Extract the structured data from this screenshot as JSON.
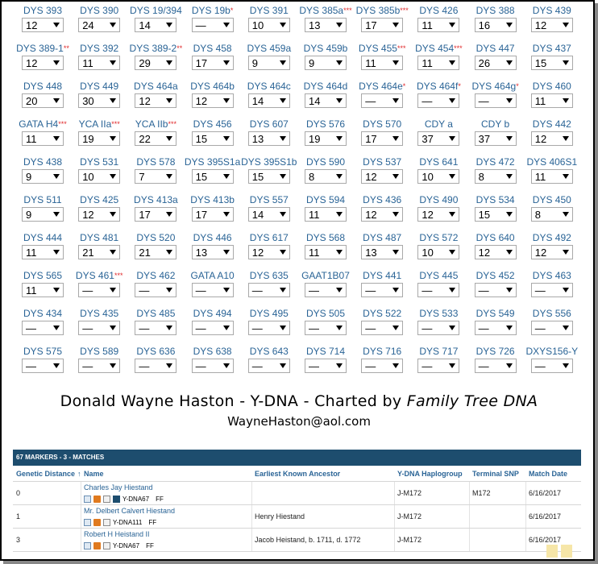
{
  "markers": [
    [
      {
        "label": "DYS 393",
        "req": "",
        "value": "12"
      },
      {
        "label": "DYS 390",
        "req": "",
        "value": "24"
      },
      {
        "label": "DYS 19/394",
        "req": "",
        "value": "14"
      },
      {
        "label": "DYS 19b",
        "req": "*",
        "value": "—"
      },
      {
        "label": "DYS 391",
        "req": "",
        "value": "10"
      },
      {
        "label": "DYS 385a",
        "req": "***",
        "value": "13"
      },
      {
        "label": "DYS 385b",
        "req": "***",
        "value": "17"
      },
      {
        "label": "DYS 426",
        "req": "",
        "value": "11"
      },
      {
        "label": "DYS 388",
        "req": "",
        "value": "16"
      },
      {
        "label": "DYS 439",
        "req": "",
        "value": "12"
      }
    ],
    [
      {
        "label": "DYS 389-1",
        "req": "**",
        "value": "12"
      },
      {
        "label": "DYS 392",
        "req": "",
        "value": "11"
      },
      {
        "label": "DYS 389-2",
        "req": "**",
        "value": "29"
      },
      {
        "label": "DYS 458",
        "req": "",
        "value": "17"
      },
      {
        "label": "DYS 459a",
        "req": "",
        "value": "9"
      },
      {
        "label": "DYS 459b",
        "req": "",
        "value": "9"
      },
      {
        "label": "DYS 455",
        "req": "***",
        "value": "11"
      },
      {
        "label": "DYS 454",
        "req": "***",
        "value": "11"
      },
      {
        "label": "DYS 447",
        "req": "",
        "value": "26"
      },
      {
        "label": "DYS 437",
        "req": "",
        "value": "15"
      }
    ],
    [
      {
        "label": "DYS 448",
        "req": "",
        "value": "20"
      },
      {
        "label": "DYS 449",
        "req": "",
        "value": "30"
      },
      {
        "label": "DYS 464a",
        "req": "",
        "value": "12"
      },
      {
        "label": "DYS 464b",
        "req": "",
        "value": "12"
      },
      {
        "label": "DYS 464c",
        "req": "",
        "value": "14"
      },
      {
        "label": "DYS 464d",
        "req": "",
        "value": "14"
      },
      {
        "label": "DYS 464e",
        "req": "*",
        "value": "—"
      },
      {
        "label": "DYS 464f",
        "req": "*",
        "value": "—"
      },
      {
        "label": "DYS 464g",
        "req": "*",
        "value": "—"
      },
      {
        "label": "DYS 460",
        "req": "",
        "value": "11"
      }
    ],
    [
      {
        "label": "GATA H4",
        "req": "***",
        "value": "11"
      },
      {
        "label": "YCA IIa",
        "req": "***",
        "value": "19"
      },
      {
        "label": "YCA IIb",
        "req": "***",
        "value": "22"
      },
      {
        "label": "DYS 456",
        "req": "",
        "value": "15"
      },
      {
        "label": "DYS 607",
        "req": "",
        "value": "13"
      },
      {
        "label": "DYS 576",
        "req": "",
        "value": "19"
      },
      {
        "label": "DYS 570",
        "req": "",
        "value": "17"
      },
      {
        "label": "CDY a",
        "req": "",
        "value": "37"
      },
      {
        "label": "CDY b",
        "req": "",
        "value": "37"
      },
      {
        "label": "DYS 442",
        "req": "",
        "value": "12"
      }
    ],
    [
      {
        "label": "DYS 438",
        "req": "",
        "value": "9"
      },
      {
        "label": "DYS 531",
        "req": "",
        "value": "10"
      },
      {
        "label": "DYS 578",
        "req": "",
        "value": "7"
      },
      {
        "label": "DYS 395S1a",
        "req": "",
        "value": "15"
      },
      {
        "label": "DYS 395S1b",
        "req": "",
        "value": "15"
      },
      {
        "label": "DYS 590",
        "req": "",
        "value": "8"
      },
      {
        "label": "DYS 537",
        "req": "",
        "value": "12"
      },
      {
        "label": "DYS 641",
        "req": "",
        "value": "10"
      },
      {
        "label": "DYS 472",
        "req": "",
        "value": "8"
      },
      {
        "label": "DYS 406S1",
        "req": "",
        "value": "11"
      }
    ],
    [
      {
        "label": "DYS 511",
        "req": "",
        "value": "9"
      },
      {
        "label": "DYS 425",
        "req": "",
        "value": "12"
      },
      {
        "label": "DYS 413a",
        "req": "",
        "value": "17"
      },
      {
        "label": "DYS 413b",
        "req": "",
        "value": "17"
      },
      {
        "label": "DYS 557",
        "req": "",
        "value": "14"
      },
      {
        "label": "DYS 594",
        "req": "",
        "value": "11"
      },
      {
        "label": "DYS 436",
        "req": "",
        "value": "12"
      },
      {
        "label": "DYS 490",
        "req": "",
        "value": "12"
      },
      {
        "label": "DYS 534",
        "req": "",
        "value": "15"
      },
      {
        "label": "DYS 450",
        "req": "",
        "value": "8"
      }
    ],
    [
      {
        "label": "DYS 444",
        "req": "",
        "value": "11"
      },
      {
        "label": "DYS 481",
        "req": "",
        "value": "21"
      },
      {
        "label": "DYS 520",
        "req": "",
        "value": "21"
      },
      {
        "label": "DYS 446",
        "req": "",
        "value": "13"
      },
      {
        "label": "DYS 617",
        "req": "",
        "value": "12"
      },
      {
        "label": "DYS 568",
        "req": "",
        "value": "11"
      },
      {
        "label": "DYS 487",
        "req": "",
        "value": "13"
      },
      {
        "label": "DYS 572",
        "req": "",
        "value": "10"
      },
      {
        "label": "DYS 640",
        "req": "",
        "value": "12"
      },
      {
        "label": "DYS 492",
        "req": "",
        "value": "12"
      }
    ],
    [
      {
        "label": "DYS 565",
        "req": "",
        "value": "11"
      },
      {
        "label": "DYS 461",
        "req": "***",
        "value": "—"
      },
      {
        "label": "DYS 462",
        "req": "",
        "value": "—"
      },
      {
        "label": "GATA A10",
        "req": "",
        "value": "—"
      },
      {
        "label": "DYS 635",
        "req": "",
        "value": "—"
      },
      {
        "label": "GAAT1B07",
        "req": "",
        "value": "—"
      },
      {
        "label": "DYS 441",
        "req": "",
        "value": "—"
      },
      {
        "label": "DYS 445",
        "req": "",
        "value": "—"
      },
      {
        "label": "DYS 452",
        "req": "",
        "value": "—"
      },
      {
        "label": "DYS 463",
        "req": "",
        "value": "—"
      }
    ],
    [
      {
        "label": "DYS 434",
        "req": "",
        "value": "—"
      },
      {
        "label": "DYS 435",
        "req": "",
        "value": "—"
      },
      {
        "label": "DYS 485",
        "req": "",
        "value": "—"
      },
      {
        "label": "DYS 494",
        "req": "",
        "value": "—"
      },
      {
        "label": "DYS 495",
        "req": "",
        "value": "—"
      },
      {
        "label": "DYS 505",
        "req": "",
        "value": "—"
      },
      {
        "label": "DYS 522",
        "req": "",
        "value": "—"
      },
      {
        "label": "DYS 533",
        "req": "",
        "value": "—"
      },
      {
        "label": "DYS 549",
        "req": "",
        "value": "—"
      },
      {
        "label": "DYS 556",
        "req": "",
        "value": "—"
      }
    ],
    [
      {
        "label": "DYS 575",
        "req": "",
        "value": "—"
      },
      {
        "label": "DYS 589",
        "req": "",
        "value": "—"
      },
      {
        "label": "DYS 636",
        "req": "",
        "value": "—"
      },
      {
        "label": "DYS 638",
        "req": "",
        "value": "—"
      },
      {
        "label": "DYS 643",
        "req": "",
        "value": "—"
      },
      {
        "label": "DYS 714",
        "req": "",
        "value": "—"
      },
      {
        "label": "DYS 716",
        "req": "",
        "value": "—"
      },
      {
        "label": "DYS 717",
        "req": "",
        "value": "—"
      },
      {
        "label": "DYS 726",
        "req": "",
        "value": "—"
      },
      {
        "label": "DXYS156-Y",
        "req": "",
        "value": "—"
      }
    ]
  ],
  "title": {
    "prefix": "Donald Wayne Haston - Y-DNA - Charted by ",
    "italic": "Family Tree DNA"
  },
  "email": "WayneHaston@aol.com",
  "matches": {
    "header": "67 MARKERS - 3 - MATCHES",
    "columns": {
      "distance": "Genetic Distance",
      "sort_arrow": "↑",
      "name": "Name",
      "ancestor": "Earliest Known Ancestor",
      "haplogroup": "Y-DNA Haplogroup",
      "snp": "Terminal SNP",
      "date": "Match Date"
    },
    "rows": [
      {
        "distance": "0",
        "name": "Charles Jay Hiestand",
        "test": "Y-DNA67",
        "ff": "FF",
        "ancestor": "",
        "haplogroup": "J-M172",
        "snp": "M172",
        "date": "6/16/2017"
      },
      {
        "distance": "1",
        "name": "Mr. Delbert Calvert Hiestand",
        "test": "Y-DNA111",
        "ff": "FF",
        "ancestor": "Henry Hiestand",
        "haplogroup": "J-M172",
        "snp": "",
        "date": "6/16/2017"
      },
      {
        "distance": "3",
        "name": "Robert H Heistand II",
        "test": "Y-DNA67",
        "ff": "FF",
        "ancestor": "Jacob Heistand, b. 1711, d. 1772",
        "haplogroup": "J-M172",
        "snp": "",
        "date": "6/16/2017"
      }
    ]
  }
}
